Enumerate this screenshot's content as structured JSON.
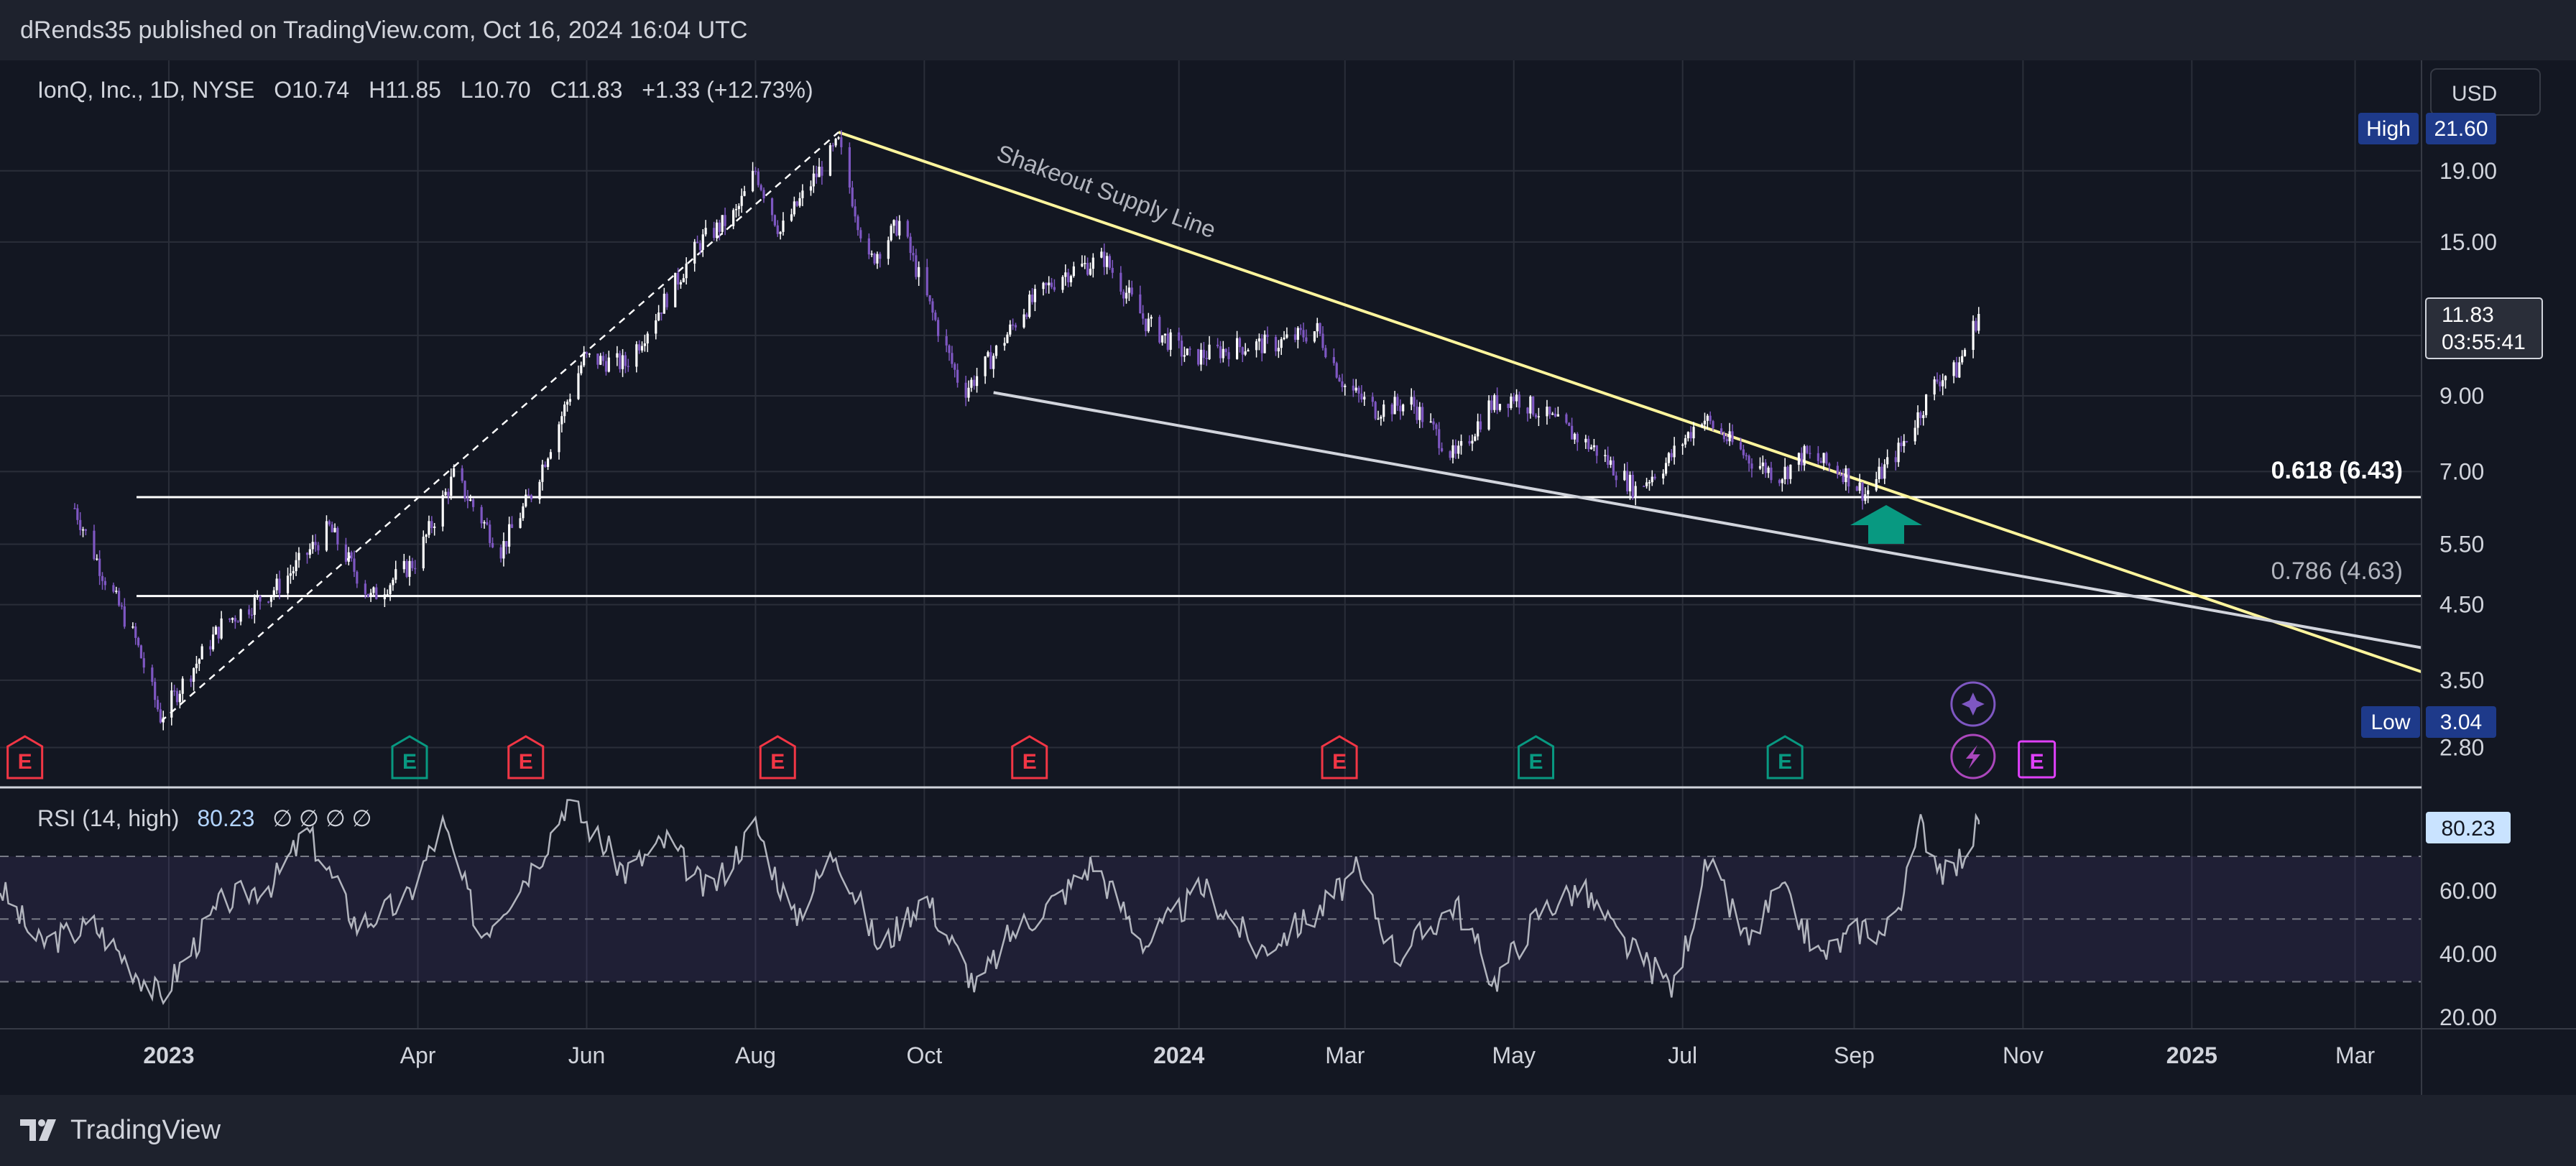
{
  "header": {
    "published": "dRends35 published on TradingView.com, Oct 16, 2024 16:04 UTC"
  },
  "legend": {
    "symbol": "IonQ, Inc., 1D, NYSE",
    "open": "O10.74",
    "high": "H11.85",
    "low": "L10.70",
    "close": "C11.83",
    "change": "+1.33 (+12.73%)"
  },
  "currency": "USD",
  "price_labels": {
    "high_tag": "High",
    "high_value": "21.60",
    "low_tag": "Low",
    "low_value": "3.04",
    "last_price": "11.83",
    "countdown": "03:55:41"
  },
  "annotations": {
    "trendline_label": "Shakeout Supply Line",
    "fib_618": "0.618 (6.43)",
    "fib_786": "0.786 (4.63)"
  },
  "rsi": {
    "label": "RSI (14, high)",
    "value": "80.23",
    "empties": "∅ ∅ ∅ ∅",
    "ticks": [
      "60.00",
      "40.00",
      "20.00"
    ]
  },
  "footer": {
    "brand": "TradingView"
  },
  "colors": {
    "background": "#131722",
    "grid": "#2a2e39",
    "candle_up": "#ffffff",
    "candle_down": "#7e57c2",
    "supply_line": "#fff59d",
    "support_line": "#d1d4dc",
    "earnings_red": "#f23645",
    "earnings_green": "#089981",
    "arrow": "#089981",
    "rsi_line": "#b2b5be",
    "rsi_value_bg": "#c9e3ff"
  },
  "chart_data": {
    "type": "candlestick",
    "symbol": "IonQ, Inc.",
    "timeframe": "1D",
    "exchange": "NYSE",
    "y_scale": "log",
    "ylim": [
      2.5,
      24
    ],
    "x_tick_labels": [
      "2023",
      "Apr",
      "Jun",
      "Aug",
      "Oct",
      "2024",
      "Mar",
      "May",
      "Jul",
      "Sep",
      "Nov",
      "2025",
      "Mar"
    ],
    "y_tick_labels": [
      "19.00",
      "15.00",
      "11.00",
      "9.00",
      "7.00",
      "5.50",
      "4.50",
      "3.50",
      "2.80"
    ],
    "close_series": {
      "t": [
        "2022-11-28",
        "2022-12-08",
        "2022-12-20",
        "2022-12-29",
        "2023-01-20",
        "2023-02-10",
        "2023-02-28",
        "2023-03-15",
        "2023-03-31",
        "2023-04-14",
        "2023-05-01",
        "2023-05-12",
        "2023-05-31",
        "2023-06-15",
        "2023-06-30",
        "2023-07-12",
        "2023-07-25",
        "2023-08-01",
        "2023-08-10",
        "2023-08-22",
        "2023-08-31",
        "2023-09-11",
        "2023-09-22",
        "2023-10-04",
        "2023-10-15",
        "2023-10-26",
        "2023-11-06",
        "2023-11-20",
        "2023-12-05",
        "2023-12-20",
        "2024-01-05",
        "2024-01-22",
        "2024-02-05",
        "2024-02-20",
        "2024-03-01",
        "2024-03-12",
        "2024-03-25",
        "2024-04-10",
        "2024-04-22",
        "2024-05-01",
        "2024-05-15",
        "2024-05-31",
        "2024-06-14",
        "2024-06-25",
        "2024-07-08",
        "2024-07-25",
        "2024-08-05",
        "2024-08-14",
        "2024-08-28",
        "2024-09-05",
        "2024-09-18",
        "2024-10-01",
        "2024-10-08",
        "2024-10-16"
      ],
      "close": [
        6.2,
        5.0,
        4.0,
        3.1,
        4.2,
        4.8,
        5.8,
        4.6,
        5.2,
        6.9,
        5.4,
        6.5,
        10.2,
        10.0,
        12.5,
        15.0,
        16.5,
        19.0,
        15.5,
        18.5,
        20.8,
        14.0,
        16.0,
        11.8,
        9.1,
        10.3,
        12.0,
        13.5,
        14.2,
        11.5,
        10.2,
        10.6,
        10.7,
        11.2,
        9.3,
        8.6,
        8.8,
        7.3,
        8.7,
        9.0,
        8.3,
        7.5,
        6.6,
        7.2,
        8.4,
        7.3,
        6.9,
        7.4,
        7.0,
        6.5,
        7.6,
        9.5,
        9.8,
        11.83
      ]
    },
    "ohlc_last": {
      "open": 10.74,
      "high": 11.85,
      "low": 10.7,
      "close": 11.83,
      "change": 1.33,
      "change_pct": 12.73
    },
    "extremes": {
      "high": 21.6,
      "low": 3.04
    },
    "horizontal_levels": [
      {
        "label": "0.618 (6.43)",
        "value": 6.43
      },
      {
        "label": "0.786 (4.63)",
        "value": 4.63
      }
    ],
    "trendlines": [
      {
        "label": "Shakeout Supply Line",
        "from": {
          "t": "2023-08-31",
          "price": 21.6
        },
        "to": {
          "t": "2025-03-25",
          "price": 3.6
        }
      },
      {
        "label": "",
        "from": {
          "t": "2023-10-26",
          "price": 9.1
        },
        "to": {
          "t": "2025-03-25",
          "price": 3.9
        }
      },
      {
        "label": "",
        "from": {
          "t": "2022-12-29",
          "price": 3.05
        },
        "to": {
          "t": "2023-08-31",
          "price": 21.6
        },
        "dashed": true
      }
    ],
    "earnings_markers": [
      {
        "t": "2022-11-10",
        "kind": "miss"
      },
      {
        "t": "2023-03-29",
        "kind": "beat"
      },
      {
        "t": "2023-05-10",
        "kind": "miss"
      },
      {
        "t": "2023-08-09",
        "kind": "miss"
      },
      {
        "t": "2023-11-08",
        "kind": "miss"
      },
      {
        "t": "2024-02-28",
        "kind": "miss"
      },
      {
        "t": "2024-05-09",
        "kind": "beat"
      },
      {
        "t": "2024-08-07",
        "kind": "beat"
      },
      {
        "t": "2024-11-06",
        "kind": "upcoming"
      }
    ],
    "rsi": {
      "period": 14,
      "source": "high",
      "last": 80.23,
      "ylim": [
        15,
        92
      ],
      "bands": [
        30,
        50,
        70
      ],
      "y_tick_labels": [
        "60.00",
        "40.00",
        "20.00"
      ],
      "t": [
        "2022-11-01",
        "2022-11-15",
        "2022-12-05",
        "2022-12-29",
        "2023-01-20",
        "2023-02-08",
        "2023-02-20",
        "2023-03-10",
        "2023-03-28",
        "2023-04-10",
        "2023-04-24",
        "2023-05-15",
        "2023-05-25",
        "2023-06-15",
        "2023-06-30",
        "2023-07-15",
        "2023-08-01",
        "2023-08-15",
        "2023-08-30",
        "2023-09-15",
        "2023-10-01",
        "2023-10-20",
        "2023-11-01",
        "2023-11-20",
        "2023-12-01",
        "2023-12-20",
        "2024-01-10",
        "2024-01-30",
        "2024-02-20",
        "2024-03-05",
        "2024-03-20",
        "2024-04-10",
        "2024-04-24",
        "2024-05-10",
        "2024-05-25",
        "2024-06-10",
        "2024-06-28",
        "2024-07-10",
        "2024-07-25",
        "2024-08-05",
        "2024-08-20",
        "2024-09-05",
        "2024-09-12",
        "2024-09-20",
        "2024-09-25",
        "2024-10-05",
        "2024-10-16"
      ],
      "values": [
        60,
        42,
        48,
        25,
        55,
        62,
        78,
        48,
        56,
        80,
        45,
        70,
        88,
        65,
        75,
        58,
        80,
        50,
        72,
        40,
        58,
        28,
        45,
        58,
        68,
        42,
        60,
        40,
        52,
        65,
        38,
        55,
        30,
        52,
        60,
        42,
        28,
        68,
        42,
        60,
        38,
        48,
        45,
        62,
        80,
        62,
        80.23
      ]
    }
  }
}
